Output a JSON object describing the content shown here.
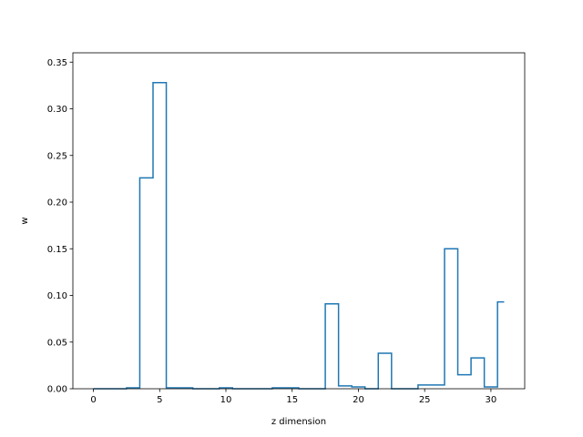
{
  "chart_data": {
    "type": "line",
    "drawstyle": "steps-mid",
    "title": "",
    "xlabel": "z dimension",
    "ylabel": "w",
    "xlim": [
      -1.55,
      32.55
    ],
    "ylim": [
      0,
      0.36
    ],
    "x_ticks": [
      0,
      5,
      10,
      15,
      20,
      25,
      30
    ],
    "y_ticks": [
      0.0,
      0.05,
      0.1,
      0.15,
      0.2,
      0.25,
      0.3,
      0.35
    ],
    "x_tick_labels": [
      "0",
      "5",
      "10",
      "15",
      "20",
      "25",
      "30"
    ],
    "y_tick_labels": [
      "0.00",
      "0.05",
      "0.10",
      "0.15",
      "0.20",
      "0.25",
      "0.30",
      "0.35"
    ],
    "grid": false,
    "series": [
      {
        "color": "#1f77b4",
        "x": [
          0,
          1,
          2,
          3,
          4,
          5,
          6,
          7,
          8,
          9,
          10,
          11,
          12,
          13,
          14,
          15,
          16,
          17,
          18,
          19,
          20,
          21,
          22,
          23,
          24,
          25,
          26,
          27,
          28,
          29,
          30,
          31
        ],
        "values": [
          0.0,
          0.0,
          0.0,
          0.001,
          0.226,
          0.328,
          0.001,
          0.001,
          0.0,
          0.0,
          0.001,
          0.0,
          0.0,
          0.0,
          0.001,
          0.001,
          0.0,
          0.0,
          0.091,
          0.003,
          0.002,
          0.0,
          0.038,
          0.0,
          0.0,
          0.004,
          0.004,
          0.15,
          0.015,
          0.033,
          0.002,
          0.093
        ]
      }
    ]
  }
}
